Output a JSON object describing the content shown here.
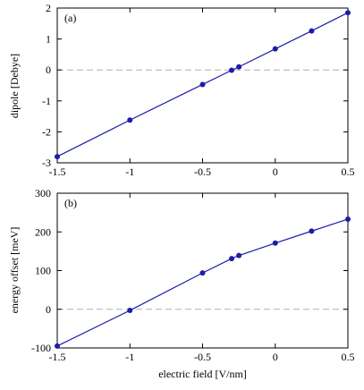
{
  "chart_data": [
    {
      "type": "line",
      "panel_label": "(a)",
      "ylabel": "dipole [Debye]",
      "xlabel": "",
      "xlim": [
        -1.5,
        0.5
      ],
      "ylim": [
        -3,
        2
      ],
      "x_ticks": [
        -1.5,
        -1,
        -0.5,
        0,
        0.5
      ],
      "x_tick_labels": [
        "-1.5",
        "-1",
        "-0.5",
        "0",
        "0.5"
      ],
      "y_ticks": [
        -3,
        -2,
        -1,
        0,
        1,
        2
      ],
      "y_tick_labels": [
        "-3",
        "-2",
        "-1",
        "0",
        "1",
        "2"
      ],
      "reference_line_y": 0,
      "grid": false,
      "series": [
        {
          "x": [
            -1.5,
            -1.0,
            -0.5,
            -0.3,
            -0.25,
            0.0,
            0.25,
            0.5
          ],
          "y": [
            -2.8,
            -1.62,
            -0.47,
            -0.01,
            0.1,
            0.68,
            1.26,
            1.85
          ]
        }
      ]
    },
    {
      "type": "line",
      "panel_label": "(b)",
      "ylabel": "energy offset [meV]",
      "xlabel": "electric field [V/nm]",
      "xlim": [
        -1.5,
        0.5
      ],
      "ylim": [
        -100,
        300
      ],
      "x_ticks": [
        -1.5,
        -1,
        -0.5,
        0,
        0.5
      ],
      "x_tick_labels": [
        "-1.5",
        "-1",
        "-0.5",
        "0",
        "0.5"
      ],
      "y_ticks": [
        -100,
        0,
        100,
        200,
        300
      ],
      "y_tick_labels": [
        "-100",
        "0",
        "100",
        "200",
        "300"
      ],
      "reference_line_y": 0,
      "grid": false,
      "series": [
        {
          "x": [
            -1.5,
            -1.0,
            -0.5,
            -0.3,
            -0.25,
            0.0,
            0.25,
            0.5
          ],
          "y": [
            -95,
            -3,
            94,
            131,
            139,
            171,
            202,
            233
          ]
        }
      ]
    }
  ],
  "colors": {
    "series": "#1c1ca8",
    "zero_line": "#b0b0b0",
    "frame": "#000000"
  }
}
